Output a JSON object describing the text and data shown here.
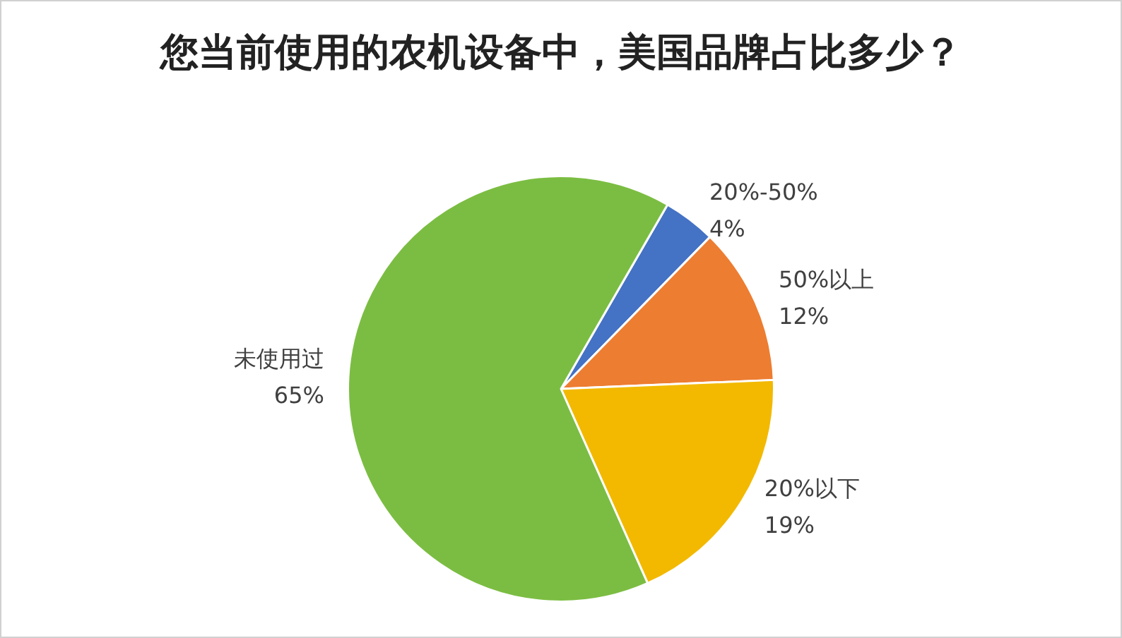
{
  "chart_data": {
    "type": "pie",
    "title": "您当前使用的农机设备中，美国品牌占比多少？",
    "categories": [
      "20%-50%",
      "50%以上",
      "20%以下",
      "未使用过"
    ],
    "values": [
      4,
      12,
      19,
      65
    ],
    "value_labels": [
      "4%",
      "12%",
      "19%",
      "65%"
    ],
    "colors": [
      "#4472c4",
      "#ed7d31",
      "#f2b900",
      "#7bbd42"
    ],
    "legend": false
  }
}
